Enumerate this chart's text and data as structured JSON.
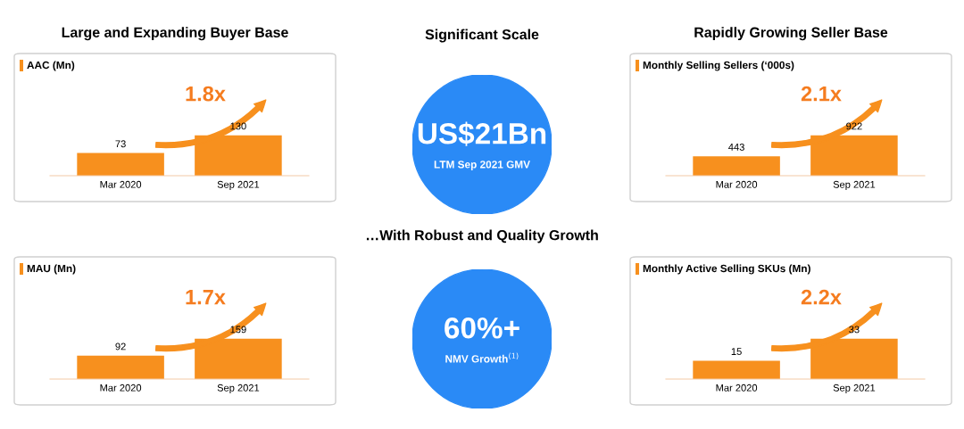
{
  "chart_data": [
    {
      "type": "bar",
      "title": "Large and Expanding Buyer Base",
      "subtitle": "AAC (Mn)",
      "categories": [
        "Mar 2020",
        "Sep 2021"
      ],
      "values": [
        73,
        130
      ],
      "color": "#f7901e",
      "data_labels": true,
      "annotations": [
        "1.8x"
      ]
    },
    {
      "type": "other",
      "title": "Significant Scale",
      "color": "#2a8af6",
      "annotations": [
        "US$21Bn",
        "LTM Sep 2021 GMV"
      ]
    },
    {
      "type": "bar",
      "title": "Rapidly Growing Seller Base",
      "subtitle": "Monthly Selling Sellers (‘000s)",
      "categories": [
        "Mar 2020",
        "Sep 2021"
      ],
      "values": [
        443,
        922
      ],
      "color": "#f7901e",
      "data_labels": true,
      "annotations": [
        "2.1x"
      ]
    },
    {
      "type": "bar",
      "subtitle": "MAU (Mn)",
      "categories": [
        "Mar 2020",
        "Sep 2021"
      ],
      "values": [
        92,
        159
      ],
      "color": "#f7901e",
      "data_labels": true,
      "annotations": [
        "1.7x"
      ]
    },
    {
      "type": "other",
      "title": "…With Robust and Quality Growth",
      "color": "#2a8af6",
      "annotations": [
        "60%+",
        "NMV Growth$^{(1)}$"
      ]
    },
    {
      "type": "bar",
      "subtitle": "Monthly Active Selling SKUs (Mn)",
      "categories": [
        "Mar 2020",
        "Sep 2021"
      ],
      "values": [
        15,
        33
      ],
      "color": "#f7901e",
      "data_labels": true,
      "annotations": [
        "2.2x"
      ]
    }
  ]
}
